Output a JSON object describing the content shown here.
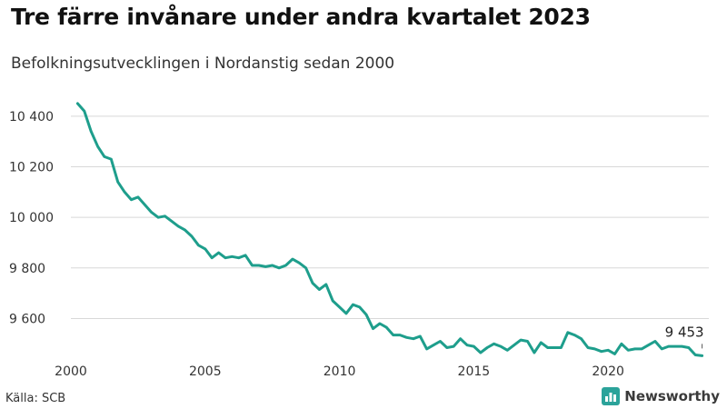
{
  "title": "Tre färre invånare under andra kvartalet 2023",
  "subtitle": "Befolkningsutvecklingen i Nordanstig sedan 2000",
  "source": "Källa: SCB",
  "brand": {
    "name": "Newsworthy",
    "logo_icon": "bar-chart-icon",
    "color": "#2ba39a"
  },
  "colors": {
    "line": "#1e9e8c",
    "grid": "#d8d8d8"
  },
  "chart_data": {
    "type": "line",
    "title": "Tre färre invånare under andra kvartalet 2023",
    "subtitle": "Befolkningsutvecklingen i Nordanstig sedan 2000",
    "xlabel": "",
    "ylabel": "",
    "grid": true,
    "xlim": [
      2000,
      2023.75
    ],
    "ylim": [
      9440,
      10500
    ],
    "x_ticks": [
      2000,
      2005,
      2010,
      2015,
      2020
    ],
    "y_ticks": [
      9600,
      9800,
      10000,
      10200,
      10400
    ],
    "y_tick_labels": [
      "9 600",
      "9 800",
      "10 000",
      "10 200",
      "10 400"
    ],
    "end_annotation": "9 453",
    "series": [
      {
        "x": [
          2000.25,
          2000.5,
          2000.75,
          2001.0,
          2001.25,
          2001.5,
          2001.75,
          2002.0,
          2002.25,
          2002.5,
          2002.75,
          2003.0,
          2003.25,
          2003.5,
          2003.75,
          2004.0,
          2004.25,
          2004.5,
          2004.75,
          2005.0,
          2005.25,
          2005.5,
          2005.75,
          2006.0,
          2006.25,
          2006.5,
          2006.75,
          2007.0,
          2007.25,
          2007.5,
          2007.75,
          2008.0,
          2008.25,
          2008.5,
          2008.75,
          2009.0,
          2009.25,
          2009.5,
          2009.75,
          2010.0,
          2010.25,
          2010.5,
          2010.75,
          2011.0,
          2011.25,
          2011.5,
          2011.75,
          2012.0,
          2012.25,
          2012.5,
          2012.75,
          2013.0,
          2013.25,
          2013.5,
          2013.75,
          2014.0,
          2014.25,
          2014.5,
          2014.75,
          2015.0,
          2015.25,
          2015.5,
          2015.75,
          2016.0,
          2016.25,
          2016.5,
          2016.75,
          2017.0,
          2017.25,
          2017.5,
          2017.75,
          2018.0,
          2018.25,
          2018.5,
          2018.75,
          2019.0,
          2019.25,
          2019.5,
          2019.75,
          2020.0,
          2020.25,
          2020.5,
          2020.75,
          2021.0,
          2021.25,
          2021.5,
          2021.75,
          2022.0,
          2022.25,
          2022.5,
          2022.75,
          2023.0,
          2023.25,
          2023.5
        ],
        "values": [
          10450,
          10420,
          10340,
          10280,
          10240,
          10230,
          10140,
          10100,
          10070,
          10080,
          10050,
          10020,
          10000,
          10005,
          9985,
          9965,
          9950,
          9925,
          9890,
          9875,
          9840,
          9860,
          9840,
          9845,
          9840,
          9850,
          9810,
          9810,
          9805,
          9810,
          9800,
          9810,
          9835,
          9820,
          9800,
          9740,
          9715,
          9735,
          9670,
          9645,
          9620,
          9655,
          9645,
          9615,
          9560,
          9580,
          9565,
          9535,
          9535,
          9525,
          9520,
          9530,
          9480,
          9495,
          9510,
          9485,
          9490,
          9520,
          9495,
          9490,
          9465,
          9485,
          9500,
          9490,
          9475,
          9495,
          9515,
          9510,
          9465,
          9505,
          9485,
          9485,
          9485,
          9545,
          9535,
          9520,
          9485,
          9480,
          9470,
          9475,
          9460,
          9500,
          9475,
          9480,
          9480,
          9495,
          9510,
          9480,
          9490,
          9490,
          9490,
          9485,
          9456,
          9453
        ]
      }
    ]
  }
}
